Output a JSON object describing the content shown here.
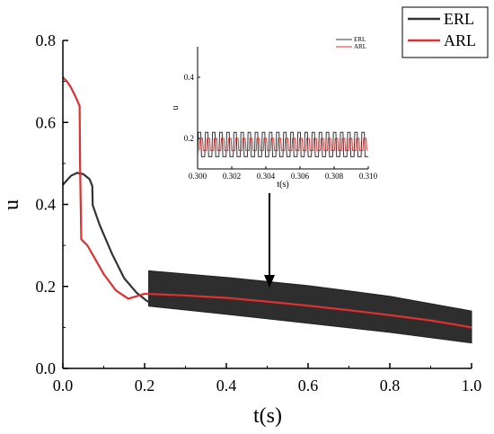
{
  "chart_data": [
    {
      "type": "line",
      "xlabel": "t(s)",
      "ylabel": "u",
      "xlim": [
        0.0,
        1.0
      ],
      "ylim": [
        0.0,
        0.8
      ],
      "xticks": [
        "0.0",
        "0.2",
        "0.4",
        "0.6",
        "0.8",
        "1.0"
      ],
      "yticks": [
        "0.0",
        "0.2",
        "0.4",
        "0.6",
        "0.8"
      ],
      "legend_position": "top-right",
      "series": [
        {
          "name": "ERL",
          "color": "#333333",
          "x": [
            0.0,
            0.02,
            0.035,
            0.05,
            0.065,
            0.072,
            0.073,
            0.09,
            0.12,
            0.15,
            0.18,
            0.205,
            0.21
          ],
          "y": [
            0.448,
            0.47,
            0.477,
            0.474,
            0.462,
            0.445,
            0.398,
            0.35,
            0.28,
            0.22,
            0.185,
            0.165,
            0.162
          ],
          "band_x": [
            0.21,
            0.4,
            0.6,
            0.8,
            1.0
          ],
          "band_upper": [
            0.238,
            0.222,
            0.202,
            0.176,
            0.14
          ],
          "band_lower": [
            0.152,
            0.132,
            0.11,
            0.088,
            0.062
          ]
        },
        {
          "name": "ARL",
          "color": "#e03030",
          "x": [
            0.0,
            0.01,
            0.02,
            0.03,
            0.041,
            0.042,
            0.045,
            0.05,
            0.06,
            0.08,
            0.1,
            0.13,
            0.16,
            0.2,
            0.3,
            0.4,
            0.5,
            0.6,
            0.7,
            0.8,
            0.9,
            1.0
          ],
          "y": [
            0.71,
            0.7,
            0.685,
            0.665,
            0.64,
            0.5,
            0.315,
            0.31,
            0.3,
            0.265,
            0.23,
            0.19,
            0.17,
            0.182,
            0.178,
            0.172,
            0.163,
            0.153,
            0.142,
            0.13,
            0.117,
            0.1
          ]
        }
      ]
    },
    {
      "type": "line",
      "xlabel": "t(s)",
      "ylabel": "u",
      "xlim": [
        0.3,
        0.31
      ],
      "ylim": [
        0.1,
        0.5
      ],
      "xticks": [
        "0.300",
        "0.302",
        "0.304",
        "0.306",
        "0.308",
        "0.310"
      ],
      "yticks": [
        "0.2",
        "0.4"
      ],
      "legend_position": "top-right",
      "series": [
        {
          "name": "ERL",
          "color": "#333333",
          "oscillation": {
            "low": 0.14,
            "high": 0.22,
            "cycles": 24
          }
        },
        {
          "name": "ARL",
          "color": "#e03030",
          "oscillation": {
            "low": 0.16,
            "high": 0.2,
            "cycles": 24
          }
        }
      ]
    }
  ]
}
